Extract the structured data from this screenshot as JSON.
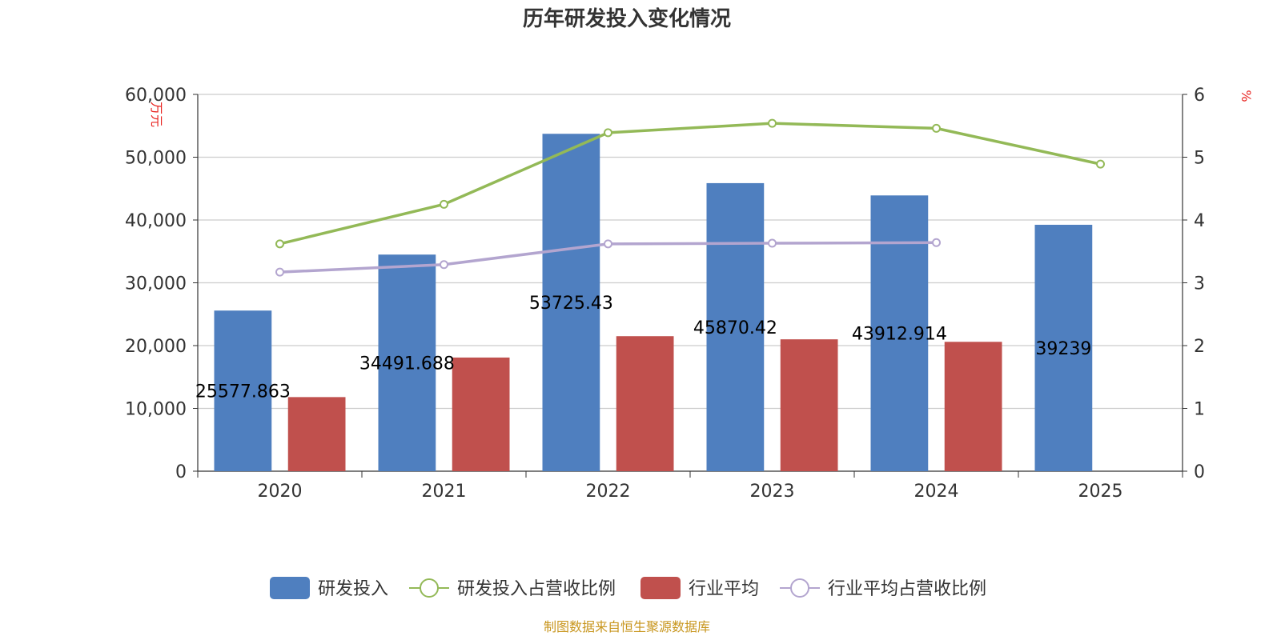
{
  "chart_data": {
    "type": "bar",
    "title": "历年研发投入变化情况",
    "categories": [
      "2020",
      "2021",
      "2022",
      "2023",
      "2024",
      "2025"
    ],
    "y_left": {
      "label": "万元",
      "min": 0,
      "max": 60000,
      "interval": 10000,
      "tick_labels": [
        "0",
        "10,000",
        "20,000",
        "30,000",
        "40,000",
        "50,000",
        "60,000"
      ]
    },
    "y_right": {
      "label": "%",
      "min": 0,
      "max": 6,
      "interval": 1,
      "tick_labels": [
        "0",
        "1",
        "2",
        "3",
        "4",
        "5",
        "6"
      ]
    },
    "grid": true,
    "legend_position": "bottom-center",
    "series": [
      {
        "name": "研发投入",
        "type": "bar",
        "axis": "left",
        "color": "#4f7fbf",
        "values": [
          25577.863,
          34491.688,
          53725.43,
          45870.42,
          43912.914,
          39239
        ],
        "data_labels": [
          "25577.863",
          "34491.688",
          "53725.43",
          "45870.42",
          "43912.914",
          "39239"
        ]
      },
      {
        "name": "研发投入占营收比例",
        "type": "line",
        "axis": "right",
        "color": "#93b957",
        "values": [
          3.62,
          4.25,
          5.39,
          5.54,
          5.46,
          4.89
        ]
      },
      {
        "name": "行业平均",
        "type": "bar",
        "axis": "left",
        "color": "#c0504d",
        "values": [
          11800,
          18100,
          21500,
          21000,
          20600,
          null
        ]
      },
      {
        "name": "行业平均占营收比例",
        "type": "line",
        "axis": "right",
        "color": "#b3a5cf",
        "values": [
          3.17,
          3.29,
          3.62,
          3.63,
          3.64,
          null
        ]
      }
    ],
    "source": "制图数据来自恒生聚源数据库"
  }
}
